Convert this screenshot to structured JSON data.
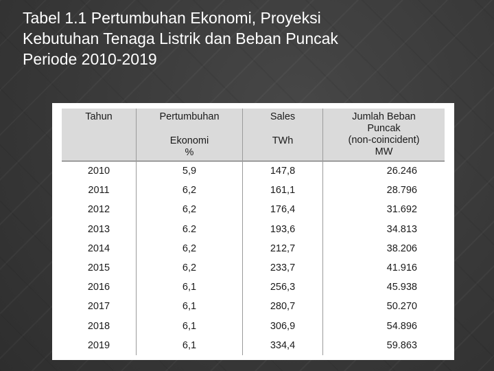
{
  "slide": {
    "title_lines": [
      "Tabel 1.1 Pertumbuhan Ekonomi, Proyeksi",
      "Kebutuhan Tenaga Listrik dan Beban Puncak",
      "Periode 2010-2019"
    ]
  },
  "table": {
    "headers": {
      "year": "Tahun",
      "growth_line1": "Pertumbuhan",
      "growth_line2": "Ekonomi",
      "growth_unit": "%",
      "sales_line1": "Sales",
      "sales_unit": "TWh",
      "peak_line1": "Jumlah Beban",
      "peak_line2": "Puncak",
      "peak_line3": "(non-coincident)",
      "peak_unit": "MW"
    },
    "rows": [
      {
        "year": "2010",
        "growth": "5,9",
        "sales": "147,8",
        "peak": "26.246"
      },
      {
        "year": "2011",
        "growth": "6,2",
        "sales": "161,1",
        "peak": "28.796"
      },
      {
        "year": "2012",
        "growth": "6,2",
        "sales": "176,4",
        "peak": "31.692"
      },
      {
        "year": "2013",
        "growth": "6.2",
        "sales": "193,6",
        "peak": "34.813"
      },
      {
        "year": "2014",
        "growth": "6,2",
        "sales": "212,7",
        "peak": "38.206"
      },
      {
        "year": "2015",
        "growth": "6,2",
        "sales": "233,7",
        "peak": "41.916"
      },
      {
        "year": "2016",
        "growth": "6,1",
        "sales": "256,3",
        "peak": "45.938"
      },
      {
        "year": "2017",
        "growth": "6,1",
        "sales": "280,7",
        "peak": "50.270"
      },
      {
        "year": "2018",
        "growth": "6,1",
        "sales": "306,9",
        "peak": "54.896"
      },
      {
        "year": "2019",
        "growth": "6,1",
        "sales": "334,4",
        "peak": "59.863"
      }
    ]
  }
}
